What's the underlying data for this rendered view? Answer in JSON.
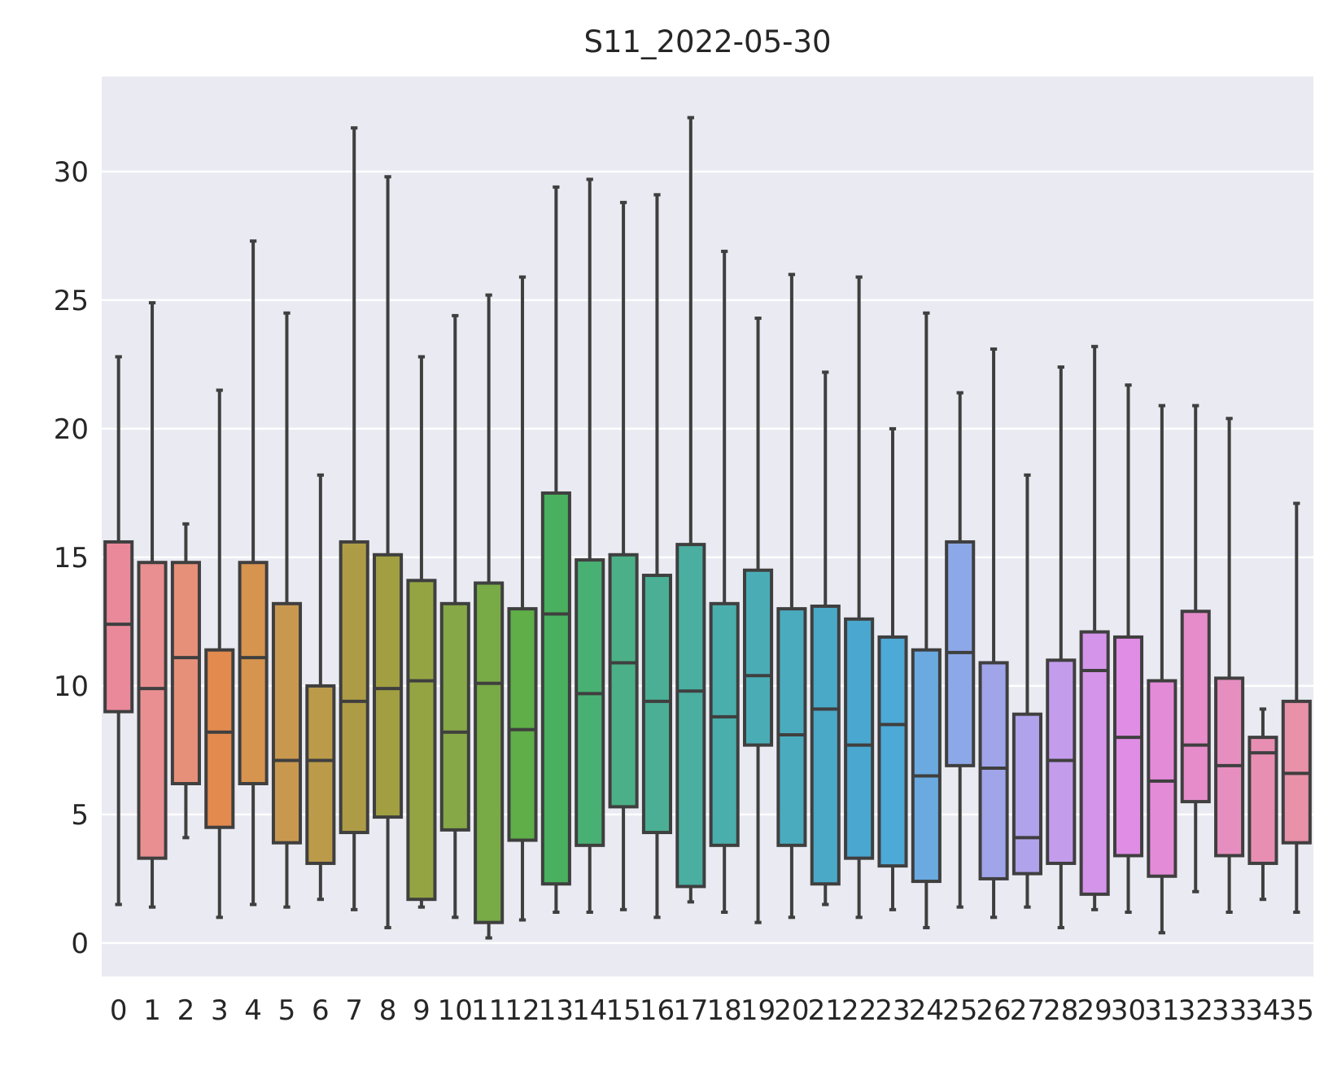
{
  "chart_data": {
    "type": "box",
    "title": "S11_2022-05-30",
    "xlabel": "",
    "ylabel": "",
    "ylim": [
      -1.3,
      33.7
    ],
    "yticks": [
      0,
      5,
      10,
      15,
      20,
      25,
      30
    ],
    "grid": "horizontal",
    "categories": [
      "0",
      "1",
      "2",
      "3",
      "4",
      "5",
      "6",
      "7",
      "8",
      "9",
      "10",
      "11",
      "12",
      "13",
      "14",
      "15",
      "16",
      "17",
      "18",
      "19",
      "20",
      "21",
      "22",
      "23",
      "24",
      "25",
      "26",
      "27",
      "28",
      "29",
      "30",
      "31",
      "32",
      "33",
      "34",
      "35"
    ],
    "boxes": [
      {
        "min": 1.5,
        "q1": 9.0,
        "median": 12.4,
        "q3": 15.6,
        "max": 22.8,
        "color": "#e9899a"
      },
      {
        "min": 1.4,
        "q1": 3.3,
        "median": 9.9,
        "q3": 14.8,
        "max": 24.9,
        "color": "#e98f91"
      },
      {
        "min": 4.1,
        "q1": 6.2,
        "median": 11.1,
        "q3": 14.8,
        "max": 16.3,
        "color": "#e6907a"
      },
      {
        "min": 1.0,
        "q1": 4.5,
        "median": 8.2,
        "q3": 11.4,
        "max": 21.5,
        "color": "#e38a4e"
      },
      {
        "min": 1.5,
        "q1": 6.2,
        "median": 11.1,
        "q3": 14.8,
        "max": 27.3,
        "color": "#d6944f"
      },
      {
        "min": 1.4,
        "q1": 3.9,
        "median": 7.1,
        "q3": 13.2,
        "max": 24.5,
        "color": "#c9984f"
      },
      {
        "min": 1.7,
        "q1": 3.1,
        "median": 7.1,
        "q3": 10.0,
        "max": 18.2,
        "color": "#bb9b4a"
      },
      {
        "min": 1.3,
        "q1": 4.3,
        "median": 9.4,
        "q3": 15.6,
        "max": 31.7,
        "color": "#ad9c45"
      },
      {
        "min": 0.6,
        "q1": 4.9,
        "median": 9.9,
        "q3": 15.1,
        "max": 29.8,
        "color": "#a19f42"
      },
      {
        "min": 1.4,
        "q1": 1.7,
        "median": 10.2,
        "q3": 14.1,
        "max": 22.8,
        "color": "#94a443"
      },
      {
        "min": 1.0,
        "q1": 4.4,
        "median": 8.2,
        "q3": 13.2,
        "max": 24.4,
        "color": "#86a846"
      },
      {
        "min": 0.2,
        "q1": 0.8,
        "median": 10.1,
        "q3": 14.0,
        "max": 25.2,
        "color": "#78aa46"
      },
      {
        "min": 0.9,
        "q1": 4.0,
        "median": 8.3,
        "q3": 13.0,
        "max": 25.9,
        "color": "#5fae48"
      },
      {
        "min": 1.2,
        "q1": 2.3,
        "median": 12.8,
        "q3": 17.5,
        "max": 29.4,
        "color": "#48b05e"
      },
      {
        "min": 1.2,
        "q1": 3.8,
        "median": 9.7,
        "q3": 14.9,
        "max": 29.7,
        "color": "#49b073"
      },
      {
        "min": 1.3,
        "q1": 5.3,
        "median": 10.9,
        "q3": 15.1,
        "max": 28.8,
        "color": "#4bb087"
      },
      {
        "min": 1.0,
        "q1": 4.3,
        "median": 9.4,
        "q3": 14.3,
        "max": 29.1,
        "color": "#4aaf95"
      },
      {
        "min": 1.6,
        "q1": 2.2,
        "median": 9.8,
        "q3": 15.5,
        "max": 32.1,
        "color": "#4aaea1"
      },
      {
        "min": 1.2,
        "q1": 3.8,
        "median": 8.8,
        "q3": 13.2,
        "max": 26.9,
        "color": "#4aaeac"
      },
      {
        "min": 0.8,
        "q1": 7.7,
        "median": 10.4,
        "q3": 14.5,
        "max": 24.3,
        "color": "#4aadb6"
      },
      {
        "min": 1.0,
        "q1": 3.8,
        "median": 8.1,
        "q3": 13.0,
        "max": 26.0,
        "color": "#4aabbf"
      },
      {
        "min": 1.5,
        "q1": 2.3,
        "median": 9.1,
        "q3": 13.1,
        "max": 22.2,
        "color": "#4aa9c7"
      },
      {
        "min": 1.0,
        "q1": 3.3,
        "median": 7.7,
        "q3": 12.6,
        "max": 25.9,
        "color": "#4aa7cf"
      },
      {
        "min": 1.3,
        "q1": 3.0,
        "median": 8.5,
        "q3": 11.9,
        "max": 20.0,
        "color": "#4da9d6"
      },
      {
        "min": 0.6,
        "q1": 2.4,
        "median": 6.5,
        "q3": 11.4,
        "max": 24.5,
        "color": "#6aaae0"
      },
      {
        "min": 1.4,
        "q1": 6.9,
        "median": 11.3,
        "q3": 15.6,
        "max": 21.4,
        "color": "#8da8e8"
      },
      {
        "min": 1.0,
        "q1": 2.5,
        "median": 6.8,
        "q3": 10.9,
        "max": 23.1,
        "color": "#a0a5ea"
      },
      {
        "min": 1.4,
        "q1": 2.7,
        "median": 4.1,
        "q3": 8.9,
        "max": 18.2,
        "color": "#b0a2eb"
      },
      {
        "min": 0.6,
        "q1": 3.1,
        "median": 7.1,
        "q3": 11.0,
        "max": 22.4,
        "color": "#c39cec"
      },
      {
        "min": 1.3,
        "q1": 1.9,
        "median": 10.6,
        "q3": 12.1,
        "max": 23.2,
        "color": "#d494ea"
      },
      {
        "min": 1.2,
        "q1": 3.4,
        "median": 8.0,
        "q3": 11.9,
        "max": 21.7,
        "color": "#e08de5"
      },
      {
        "min": 0.4,
        "q1": 2.6,
        "median": 6.3,
        "q3": 10.2,
        "max": 20.9,
        "color": "#e48bd8"
      },
      {
        "min": 2.0,
        "q1": 5.5,
        "median": 7.7,
        "q3": 12.9,
        "max": 20.9,
        "color": "#e68ccb"
      },
      {
        "min": 1.2,
        "q1": 3.4,
        "median": 6.9,
        "q3": 10.3,
        "max": 20.4,
        "color": "#e78ec0"
      },
      {
        "min": 1.7,
        "q1": 3.1,
        "median": 7.4,
        "q3": 8.0,
        "max": 9.1,
        "color": "#e88eb3"
      },
      {
        "min": 1.2,
        "q1": 3.9,
        "median": 6.6,
        "q3": 9.4,
        "max": 17.1,
        "color": "#e891a8"
      }
    ]
  }
}
